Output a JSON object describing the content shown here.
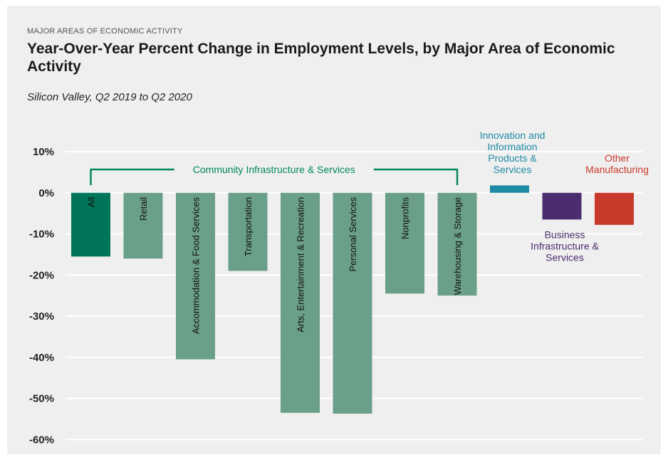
{
  "header": {
    "kicker": "MAJOR AREAS OF ECONOMIC ACTIVITY",
    "title": "Year-Over-Year Percent Change in Employment Levels, by Major Area of Economic Activity",
    "subtitle": "Silicon Valley, Q2 2019 to Q2 2020"
  },
  "chart_data": {
    "type": "bar",
    "title": "Year-Over-Year Percent Change in Employment Levels, by Major Area of Economic Activity",
    "subtitle": "Silicon Valley, Q2 2019 to Q2 2020",
    "xlabel": "",
    "ylabel": "",
    "ylim": [
      -60,
      10
    ],
    "yticks": [
      10,
      0,
      -10,
      -20,
      -30,
      -40,
      -50,
      -60
    ],
    "ytick_labels": [
      "10%",
      "0%",
      "-10%",
      "-20%",
      "-30%",
      "-40%",
      "-50%",
      "-60%"
    ],
    "grid": true,
    "categories": [
      "All",
      "Retail",
      "Accommodation & Food Services",
      "Transportation",
      "Arts, Entertainment & Recreation",
      "Personal Services",
      "Nonprofits",
      "Warehousing & Storage",
      "Innovation and Information Products & Services",
      "Business Infrastructure & Services",
      "Other Manufacturing"
    ],
    "values": [
      -15.5,
      -16,
      -40.5,
      -19,
      -53.5,
      -53.7,
      -24.5,
      -25,
      1.8,
      -6.5,
      -7.8
    ],
    "bar_labels": [
      "All",
      "Retail",
      "Accommodation & Food Services",
      "Transportation",
      "Arts, Entertainment & Recreation",
      "Personal Services",
      "Nonprofits",
      "Warehousing & Storage",
      "",
      "",
      ""
    ],
    "colors": [
      "#00755a",
      "#6a9f89",
      "#6a9f89",
      "#6a9f89",
      "#6a9f89",
      "#6a9f89",
      "#6a9f89",
      "#6a9f89",
      "#1f8aa6",
      "#4b2c6e",
      "#c8392b"
    ],
    "groups": [
      {
        "label": "Community Infrastructure & Services",
        "from": 0,
        "to": 7,
        "color": "#00875f",
        "placement": "bracket-above"
      },
      {
        "label": "Innovation and Information Products & Services",
        "from": 8,
        "to": 8,
        "color": "#1f8aa6",
        "placement": "above"
      },
      {
        "label": "Business Infrastructure & Services",
        "from": 9,
        "to": 9,
        "color": "#4b2c6e",
        "placement": "below"
      },
      {
        "label": "Other Manufacturing",
        "from": 10,
        "to": 10,
        "color": "#c8392b",
        "placement": "above"
      }
    ]
  }
}
